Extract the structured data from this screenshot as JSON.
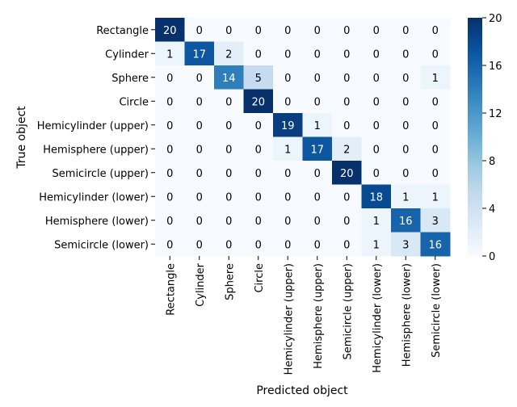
{
  "chart_data": {
    "type": "heatmap",
    "title": "",
    "xlabel": "Predicted object",
    "ylabel": "True object",
    "x_categories": [
      "Rectangle",
      "Cylinder",
      "Sphere",
      "Circle",
      "Hemicylinder (upper)",
      "Hemisphere (upper)",
      "Semicircle (upper)",
      "Hemicylinder (lower)",
      "Hemisphere (lower)",
      "Semicircle (lower)"
    ],
    "y_categories": [
      "Rectangle",
      "Cylinder",
      "Sphere",
      "Circle",
      "Hemicylinder (upper)",
      "Hemisphere (upper)",
      "Semicircle (upper)",
      "Hemicylinder (lower)",
      "Hemisphere (lower)",
      "Semicircle (lower)"
    ],
    "values": [
      [
        20,
        0,
        0,
        0,
        0,
        0,
        0,
        0,
        0,
        0
      ],
      [
        1,
        17,
        2,
        0,
        0,
        0,
        0,
        0,
        0,
        0
      ],
      [
        0,
        0,
        14,
        5,
        0,
        0,
        0,
        0,
        0,
        1
      ],
      [
        0,
        0,
        0,
        20,
        0,
        0,
        0,
        0,
        0,
        0
      ],
      [
        0,
        0,
        0,
        0,
        19,
        1,
        0,
        0,
        0,
        0
      ],
      [
        0,
        0,
        0,
        0,
        1,
        17,
        2,
        0,
        0,
        0
      ],
      [
        0,
        0,
        0,
        0,
        0,
        0,
        20,
        0,
        0,
        0
      ],
      [
        0,
        0,
        0,
        0,
        0,
        0,
        0,
        18,
        1,
        1
      ],
      [
        0,
        0,
        0,
        0,
        0,
        0,
        0,
        1,
        16,
        3
      ],
      [
        0,
        0,
        0,
        0,
        0,
        0,
        0,
        1,
        3,
        16
      ]
    ],
    "colorbar": {
      "range": [
        0,
        20
      ],
      "ticks": [
        0,
        4,
        8,
        12,
        16,
        20
      ],
      "colormap": "Blues",
      "low_color": "#f7fbff",
      "high_color": "#08306b"
    },
    "grid": false,
    "legend": "colorbar-right"
  }
}
